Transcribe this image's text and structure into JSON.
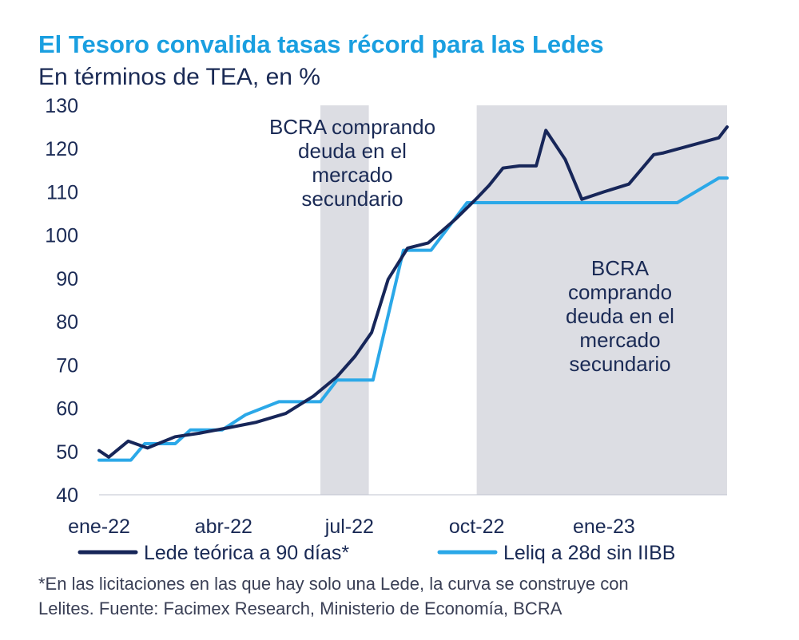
{
  "title": "El Tesoro convalida tasas récord para las Ledes",
  "subtitle": "En términos de TEA, en %",
  "footnote": [
    "*En las licitaciones en las que hay solo una Lede, la curva se construye con",
    "Lelites. Fuente: Facimex Research, Ministerio de Economía, BCRA"
  ],
  "colors": {
    "lede": "#172659",
    "leliq": "#2ba8e8",
    "shade": "#dcdde3",
    "text": "#1a2a55",
    "title": "#1a9fe0"
  },
  "chart_data": {
    "type": "line",
    "ylim": [
      40,
      130
    ],
    "yticks": [
      40,
      50,
      60,
      70,
      80,
      90,
      100,
      110,
      120,
      130
    ],
    "xlim": [
      "2022-01-01",
      "2023-03-31"
    ],
    "xticks": [
      {
        "label": "ene-22",
        "date": "2022-01-01"
      },
      {
        "label": "abr-22",
        "date": "2022-04-01"
      },
      {
        "label": "jul-22",
        "date": "2022-07-01"
      },
      {
        "label": "oct-22",
        "date": "2022-10-01"
      },
      {
        "label": "ene-23",
        "date": "2023-01-01"
      }
    ],
    "shaded_periods": [
      {
        "start": "2022-06-10",
        "end": "2022-07-15",
        "label": [
          "BCRA comprando",
          "deuda en el",
          "mercado",
          "secundario"
        ]
      },
      {
        "start": "2022-10-01",
        "end": "2023-03-31",
        "label": [
          "BCRA",
          "comprando",
          "deuda en el",
          "mercado",
          "secundario"
        ]
      }
    ],
    "grid": false,
    "legend_position": "bottom",
    "series": [
      {
        "name": "Lede teórica a 90 días*",
        "color": "#172659",
        "points": [
          [
            "2022-01-01",
            50.2
          ],
          [
            "2022-01-08",
            48.7
          ],
          [
            "2022-01-22",
            52.4
          ],
          [
            "2022-02-05",
            50.8
          ],
          [
            "2022-02-25",
            53.4
          ],
          [
            "2022-03-14",
            54.2
          ],
          [
            "2022-04-03",
            55.4
          ],
          [
            "2022-04-24",
            56.7
          ],
          [
            "2022-05-16",
            58.8
          ],
          [
            "2022-06-05",
            62.8
          ],
          [
            "2022-06-22",
            67.3
          ],
          [
            "2022-07-05",
            72.0
          ],
          [
            "2022-07-17",
            77.5
          ],
          [
            "2022-07-29",
            89.8
          ],
          [
            "2022-08-12",
            97.0
          ],
          [
            "2022-08-27",
            98.2
          ],
          [
            "2022-09-16",
            103.8
          ],
          [
            "2022-10-01",
            108.5
          ],
          [
            "2022-10-10",
            111.5
          ],
          [
            "2022-10-20",
            115.5
          ],
          [
            "2022-11-01",
            116.0
          ],
          [
            "2022-11-13",
            116.0
          ],
          [
            "2022-11-20",
            124.2
          ],
          [
            "2022-12-04",
            117.5
          ],
          [
            "2022-12-16",
            108.3
          ],
          [
            "2023-01-01",
            110.0
          ],
          [
            "2023-01-19",
            111.8
          ],
          [
            "2023-02-06",
            118.6
          ],
          [
            "2023-02-13",
            119.0
          ],
          [
            "2023-03-25",
            122.5
          ],
          [
            "2023-03-31",
            125.0
          ]
        ]
      },
      {
        "name": "Leliq a 28d sin IIBB",
        "color": "#2ba8e8",
        "points": [
          [
            "2022-01-01",
            48.0
          ],
          [
            "2022-01-24",
            48.0
          ],
          [
            "2022-02-03",
            51.8
          ],
          [
            "2022-02-25",
            51.8
          ],
          [
            "2022-03-08",
            55.0
          ],
          [
            "2022-03-31",
            55.0
          ],
          [
            "2022-04-17",
            58.5
          ],
          [
            "2022-05-11",
            61.5
          ],
          [
            "2022-06-10",
            61.5
          ],
          [
            "2022-06-22",
            66.5
          ],
          [
            "2022-07-18",
            66.5
          ],
          [
            "2022-08-09",
            96.5
          ],
          [
            "2022-08-29",
            96.5
          ],
          [
            "2022-09-24",
            107.5
          ],
          [
            "2023-02-23",
            107.5
          ],
          [
            "2023-03-25",
            113.2
          ],
          [
            "2023-03-31",
            113.2
          ]
        ]
      }
    ]
  }
}
